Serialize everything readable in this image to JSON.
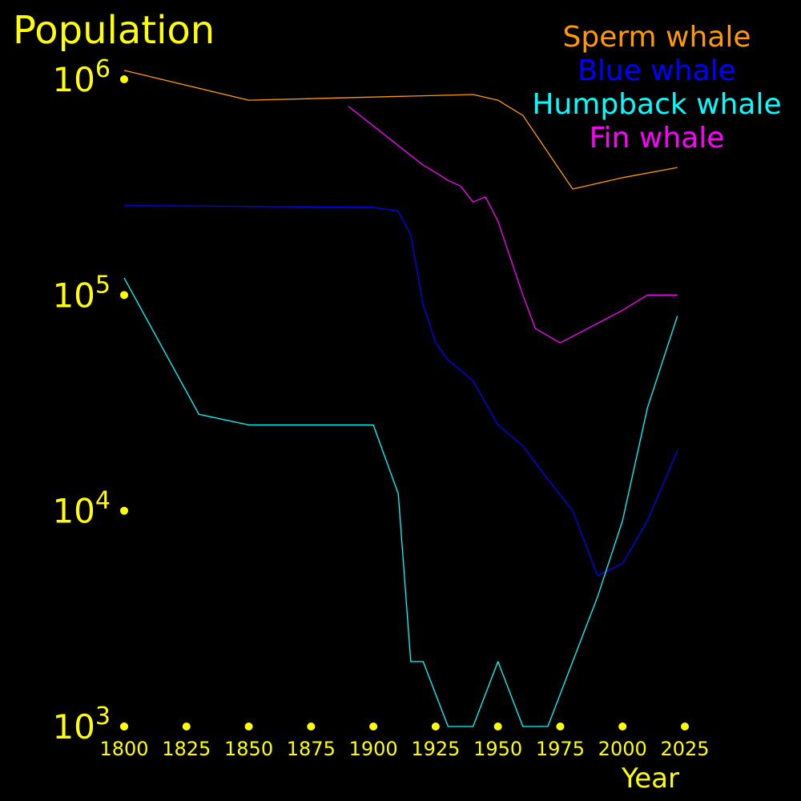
{
  "chart_data": {
    "type": "line",
    "ylabel": "Population",
    "xlabel": "Year",
    "y_scale": "log",
    "ylim": [
      1000,
      1000000
    ],
    "xlim": [
      1800,
      2025
    ],
    "x_ticks": [
      "1800",
      "1825",
      "1850",
      "1875",
      "1900",
      "1925",
      "1950",
      "1975",
      "2000",
      "2025"
    ],
    "y_ticks": [
      {
        "value": 1000,
        "base": "10",
        "exp": "3"
      },
      {
        "value": 10000,
        "base": "10",
        "exp": "4"
      },
      {
        "value": 100000,
        "base": "10",
        "exp": "5"
      },
      {
        "value": 1000000,
        "base": "10",
        "exp": "6"
      }
    ],
    "legend_position": "top-right",
    "text_color": "#ffff00",
    "background": "#000000",
    "series": [
      {
        "name": "Sperm whale",
        "color": "#ff9900",
        "x": [
          1800,
          1850,
          1940,
          1950,
          1960,
          1980,
          2000,
          2022
        ],
        "y": [
          1100000,
          800000,
          850000,
          800000,
          680000,
          310000,
          350000,
          390000
        ]
      },
      {
        "name": "Blue whale",
        "color": "#0000ff",
        "x": [
          1800,
          1900,
          1910,
          1915,
          1920,
          1925,
          1930,
          1940,
          1950,
          1960,
          1970,
          1980,
          1990,
          2000,
          2010,
          2022
        ],
        "y": [
          260000,
          255000,
          245000,
          190000,
          90000,
          60000,
          50000,
          40000,
          25000,
          20000,
          14000,
          10000,
          5000,
          5700,
          9000,
          19000
        ]
      },
      {
        "name": "Humpback whale",
        "color": "#00ffff",
        "x": [
          1800,
          1830,
          1850,
          1900,
          1910,
          1915,
          1920,
          1930,
          1940,
          1950,
          1960,
          1970,
          1980,
          1990,
          2000,
          2010,
          2022
        ],
        "y": [
          120000,
          28000,
          25000,
          25000,
          12000,
          2000,
          2000,
          1000,
          1000,
          2000,
          1000,
          1000,
          2000,
          4000,
          9000,
          30000,
          80000
        ]
      },
      {
        "name": "Fin whale",
        "color": "#ff00ff",
        "x": [
          1890,
          1920,
          1925,
          1930,
          1935,
          1940,
          1945,
          1950,
          1960,
          1965,
          1975,
          2000,
          2010,
          2022
        ],
        "y": [
          750000,
          400000,
          370000,
          340000,
          320000,
          270000,
          285000,
          220000,
          100000,
          70000,
          60000,
          85000,
          100000,
          100000
        ]
      }
    ]
  }
}
